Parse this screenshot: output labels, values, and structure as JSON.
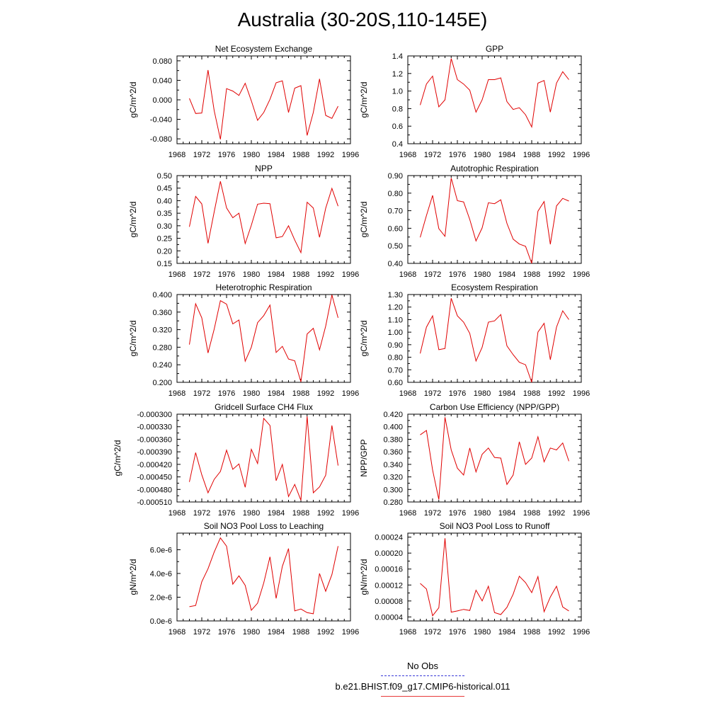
{
  "title": "Australia (30-20S,110-145E)",
  "legend": {
    "obs_label": "No Obs",
    "model_label": "b.e21.BHIST.f09_g17.CMIP6-historical.011",
    "obs_color": "#3a3ad8",
    "model_color": "#e00000"
  },
  "chart_data": [
    {
      "type": "line",
      "title": "Net Ecosystem Exchange",
      "ylabel": "gC/m^2/d",
      "xlim": [
        1968,
        1996
      ],
      "xticks": [
        "1968",
        "1972",
        "1976",
        "1980",
        "1984",
        "1988",
        "1992",
        "1996"
      ],
      "ylim": [
        -0.09,
        0.09
      ],
      "yticks": [
        "-0.080",
        "-0.040",
        "0.000",
        "0.040",
        "0.080"
      ],
      "x": [
        1970,
        1971,
        1972,
        1973,
        1974,
        1975,
        1976,
        1977,
        1978,
        1979,
        1980,
        1981,
        1982,
        1983,
        1984,
        1985,
        1986,
        1987,
        1988,
        1989,
        1990,
        1991,
        1992,
        1993,
        1994
      ],
      "series": [
        {
          "color": "#e00000",
          "values": [
            0.003,
            -0.028,
            -0.027,
            0.061,
            -0.022,
            -0.081,
            0.023,
            0.018,
            0.009,
            0.034,
            -0.002,
            -0.042,
            -0.026,
            0.001,
            0.035,
            0.039,
            -0.026,
            0.024,
            0.029,
            -0.073,
            -0.026,
            0.043,
            -0.032,
            -0.038,
            -0.013
          ]
        }
      ]
    },
    {
      "type": "line",
      "title": "GPP",
      "ylabel": "gC/m^2/d",
      "xlim": [
        1968,
        1996
      ],
      "xticks": [
        "1968",
        "1972",
        "1976",
        "1980",
        "1984",
        "1988",
        "1992",
        "1996"
      ],
      "ylim": [
        0.4,
        1.4
      ],
      "yticks": [
        "0.4",
        "0.6",
        "0.8",
        "1.0",
        "1.2",
        "1.4"
      ],
      "x": [
        1970,
        1971,
        1972,
        1973,
        1974,
        1975,
        1976,
        1977,
        1978,
        1979,
        1980,
        1981,
        1982,
        1983,
        1984,
        1985,
        1986,
        1987,
        1988,
        1989,
        1990,
        1991,
        1992,
        1993,
        1994
      ],
      "series": [
        {
          "color": "#e00000",
          "values": [
            0.84,
            1.08,
            1.17,
            0.82,
            0.9,
            1.37,
            1.13,
            1.08,
            1.01,
            0.76,
            0.9,
            1.13,
            1.13,
            1.15,
            0.88,
            0.79,
            0.81,
            0.73,
            0.59,
            1.09,
            1.12,
            0.76,
            1.09,
            1.22,
            1.13
          ]
        }
      ]
    },
    {
      "type": "line",
      "title": "NPP",
      "ylabel": "gC/m^2/d",
      "xlim": [
        1968,
        1996
      ],
      "xticks": [
        "1968",
        "1972",
        "1976",
        "1980",
        "1984",
        "1988",
        "1992",
        "1996"
      ],
      "ylim": [
        0.15,
        0.5
      ],
      "yticks": [
        "0.15",
        "0.20",
        "0.25",
        "0.30",
        "0.35",
        "0.40",
        "0.45",
        "0.50"
      ],
      "x": [
        1970,
        1971,
        1972,
        1973,
        1974,
        1975,
        1976,
        1977,
        1978,
        1979,
        1980,
        1981,
        1982,
        1983,
        1984,
        1985,
        1986,
        1987,
        1988,
        1989,
        1990,
        1991,
        1992,
        1993,
        1994
      ],
      "series": [
        {
          "color": "#e00000",
          "values": [
            0.296,
            0.417,
            0.387,
            0.23,
            0.355,
            0.477,
            0.371,
            0.332,
            0.35,
            0.229,
            0.302,
            0.386,
            0.39,
            0.388,
            0.252,
            0.257,
            0.3,
            0.243,
            0.193,
            0.394,
            0.371,
            0.254,
            0.37,
            0.449,
            0.378
          ]
        }
      ]
    },
    {
      "type": "line",
      "title": "Autotrophic Respiration",
      "ylabel": "gC/m^2/d",
      "xlim": [
        1968,
        1996
      ],
      "xticks": [
        "1968",
        "1972",
        "1976",
        "1980",
        "1984",
        "1988",
        "1992",
        "1996"
      ],
      "ylim": [
        0.4,
        0.9
      ],
      "yticks": [
        "0.40",
        "0.50",
        "0.60",
        "0.70",
        "0.80",
        "0.90"
      ],
      "x": [
        1970,
        1971,
        1972,
        1973,
        1974,
        1975,
        1976,
        1977,
        1978,
        1979,
        1980,
        1981,
        1982,
        1983,
        1984,
        1985,
        1986,
        1987,
        1988,
        1989,
        1990,
        1991,
        1992,
        1993,
        1994
      ],
      "series": [
        {
          "color": "#e00000",
          "values": [
            0.548,
            0.672,
            0.787,
            0.598,
            0.554,
            0.886,
            0.757,
            0.75,
            0.65,
            0.528,
            0.602,
            0.745,
            0.74,
            0.762,
            0.628,
            0.538,
            0.51,
            0.497,
            0.4,
            0.697,
            0.752,
            0.509,
            0.727,
            0.77,
            0.755
          ]
        }
      ]
    },
    {
      "type": "line",
      "title": "Heterotrophic Respiration",
      "ylabel": "gC/m^2/d",
      "xlim": [
        1968,
        1996
      ],
      "xticks": [
        "1968",
        "1972",
        "1976",
        "1980",
        "1984",
        "1988",
        "1992",
        "1996"
      ],
      "ylim": [
        0.2,
        0.4
      ],
      "yticks": [
        "0.200",
        "0.240",
        "0.280",
        "0.320",
        "0.360",
        "0.400"
      ],
      "x": [
        1970,
        1971,
        1972,
        1973,
        1974,
        1975,
        1976,
        1977,
        1978,
        1979,
        1980,
        1981,
        1982,
        1983,
        1984,
        1985,
        1986,
        1987,
        1988,
        1989,
        1990,
        1991,
        1992,
        1993,
        1994
      ],
      "series": [
        {
          "color": "#e00000",
          "values": [
            0.286,
            0.379,
            0.347,
            0.267,
            0.321,
            0.386,
            0.378,
            0.333,
            0.342,
            0.248,
            0.28,
            0.336,
            0.352,
            0.376,
            0.268,
            0.282,
            0.253,
            0.249,
            0.201,
            0.31,
            0.323,
            0.274,
            0.328,
            0.399,
            0.347
          ]
        }
      ]
    },
    {
      "type": "line",
      "title": "Ecosystem Respiration",
      "ylabel": "gC/m^2/d",
      "xlim": [
        1968,
        1996
      ],
      "xticks": [
        "1968",
        "1972",
        "1976",
        "1980",
        "1984",
        "1988",
        "1992",
        "1996"
      ],
      "ylim": [
        0.6,
        1.3
      ],
      "yticks": [
        "0.60",
        "0.70",
        "0.80",
        "0.90",
        "1.00",
        "1.10",
        "1.20",
        "1.30"
      ],
      "x": [
        1970,
        1971,
        1972,
        1973,
        1974,
        1975,
        1976,
        1977,
        1978,
        1979,
        1980,
        1981,
        1982,
        1983,
        1984,
        1985,
        1986,
        1987,
        1988,
        1989,
        1990,
        1991,
        1992,
        1993,
        1994
      ],
      "series": [
        {
          "color": "#e00000",
          "values": [
            0.83,
            1.04,
            1.13,
            0.86,
            0.87,
            1.27,
            1.13,
            1.08,
            0.99,
            0.77,
            0.88,
            1.08,
            1.09,
            1.14,
            0.89,
            0.82,
            0.76,
            0.74,
            0.6,
            1.0,
            1.07,
            0.78,
            1.04,
            1.17,
            1.1
          ]
        }
      ]
    },
    {
      "type": "line",
      "title": "Gridcell Surface CH4 Flux",
      "ylabel": "gC/m^2/d",
      "xlim": [
        1968,
        1996
      ],
      "xticks": [
        "1968",
        "1972",
        "1976",
        "1980",
        "1984",
        "1988",
        "1992",
        "1996"
      ],
      "ylim": [
        -0.00051,
        -0.0003
      ],
      "yticks": [
        "-0.000510",
        "-0.000480",
        "-0.000450",
        "-0.000420",
        "-0.000390",
        "-0.000360",
        "-0.000330",
        "-0.000300"
      ],
      "x": [
        1970,
        1971,
        1972,
        1973,
        1974,
        1975,
        1976,
        1977,
        1978,
        1979,
        1980,
        1981,
        1982,
        1983,
        1984,
        1985,
        1986,
        1987,
        1988,
        1989,
        1990,
        1991,
        1992,
        1993,
        1994
      ],
      "series": [
        {
          "color": "#e00000",
          "values": [
            -0.000462,
            -0.000392,
            -0.000445,
            -0.000488,
            -0.000456,
            -0.000437,
            -0.000386,
            -0.000432,
            -0.000419,
            -0.000475,
            -0.000384,
            -0.000418,
            -0.00031,
            -0.000327,
            -0.000459,
            -0.00042,
            -0.000497,
            -0.000468,
            -0.000506,
            -0.000305,
            -0.000488,
            -0.000474,
            -0.000446,
            -0.000327,
            -0.000423
          ]
        }
      ]
    },
    {
      "type": "line",
      "title": "Carbon Use Efficiency (NPP/GPP)",
      "ylabel": "NPP/GPP",
      "xlim": [
        1968,
        1996
      ],
      "xticks": [
        "1968",
        "1972",
        "1976",
        "1980",
        "1984",
        "1988",
        "1992",
        "1996"
      ],
      "ylim": [
        0.28,
        0.42
      ],
      "yticks": [
        "0.280",
        "0.300",
        "0.320",
        "0.340",
        "0.360",
        "0.380",
        "0.400",
        "0.420"
      ],
      "x": [
        1970,
        1971,
        1972,
        1973,
        1974,
        1975,
        1976,
        1977,
        1978,
        1979,
        1980,
        1981,
        1982,
        1983,
        1984,
        1985,
        1986,
        1987,
        1988,
        1989,
        1990,
        1991,
        1992,
        1993,
        1994
      ],
      "series": [
        {
          "color": "#e00000",
          "values": [
            0.387,
            0.394,
            0.331,
            0.284,
            0.415,
            0.363,
            0.334,
            0.323,
            0.366,
            0.328,
            0.356,
            0.366,
            0.351,
            0.35,
            0.308,
            0.323,
            0.376,
            0.34,
            0.35,
            0.384,
            0.344,
            0.366,
            0.363,
            0.374,
            0.345
          ]
        }
      ]
    },
    {
      "type": "line",
      "title": "Soil NO3 Pool Loss to Leaching",
      "ylabel": "gN/m^2/d",
      "xlim": [
        1968,
        1996
      ],
      "xticks": [
        "1968",
        "1972",
        "1976",
        "1980",
        "1984",
        "1988",
        "1992",
        "1996"
      ],
      "ylim": [
        0,
        7.4e-06
      ],
      "yticks": [
        "0.0e-6",
        "2.0e-6",
        "4.0e-6",
        "6.0e-6"
      ],
      "x": [
        1970,
        1971,
        1972,
        1973,
        1974,
        1975,
        1976,
        1977,
        1978,
        1979,
        1980,
        1981,
        1982,
        1983,
        1984,
        1985,
        1986,
        1987,
        1988,
        1989,
        1990,
        1991,
        1992,
        1993,
        1994
      ],
      "series": [
        {
          "color": "#e00000",
          "values": [
            1.2e-06,
            1.3e-06,
            3.3e-06,
            4.4e-06,
            5.8e-06,
            7e-06,
            6.3e-06,
            3.1e-06,
            3.8e-06,
            3e-06,
            9e-07,
            1.5e-06,
            3.2e-06,
            5.4e-06,
            1.9e-06,
            4.6e-06,
            6.1e-06,
            8.5e-07,
            1e-06,
            7e-07,
            6e-07,
            4e-06,
            2.5e-06,
            3.9e-06,
            6.3e-06
          ]
        }
      ]
    },
    {
      "type": "line",
      "title": "Soil NO3 Pool Loss to Runoff",
      "ylabel": "gN/m^2/d",
      "xlim": [
        1968,
        1996
      ],
      "xticks": [
        "1968",
        "1972",
        "1976",
        "1980",
        "1984",
        "1988",
        "1992",
        "1996"
      ],
      "ylim": [
        3e-05,
        0.00025
      ],
      "yticks": [
        "0.00004",
        "0.00008",
        "0.00012",
        "0.00016",
        "0.00020",
        "0.00024"
      ],
      "x": [
        1970,
        1971,
        1972,
        1973,
        1974,
        1975,
        1976,
        1977,
        1978,
        1979,
        1980,
        1981,
        1982,
        1983,
        1984,
        1985,
        1986,
        1987,
        1988,
        1989,
        1990,
        1991,
        1992,
        1993,
        1994
      ],
      "series": [
        {
          "color": "#e00000",
          "values": [
            0.000124,
            0.00011,
            4.3e-05,
            6.3e-05,
            0.000237,
            5.2e-05,
            5.5e-05,
            5.9e-05,
            5.6e-05,
            0.000107,
            8e-05,
            0.000117,
            5.1e-05,
            4.6e-05,
            6.4e-05,
            9.7e-05,
            0.000142,
            0.000126,
            0.000101,
            0.000141,
            5.3e-05,
            9e-05,
            0.000117,
            6.5e-05,
            5.5e-05
          ]
        }
      ]
    }
  ]
}
